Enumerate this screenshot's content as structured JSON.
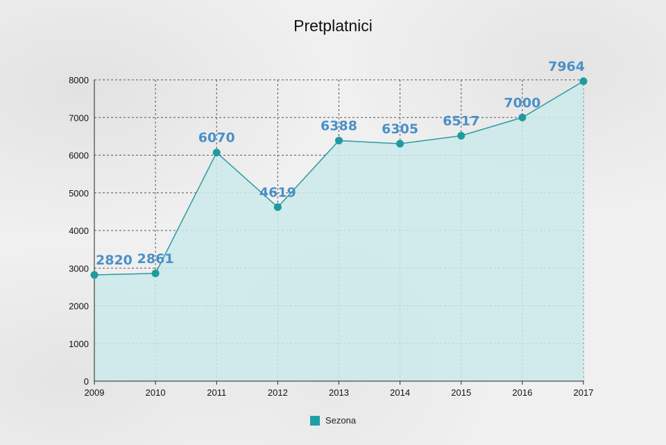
{
  "chart_data": {
    "type": "area",
    "title": "Pretplatnici",
    "xlabel": "",
    "ylabel": "",
    "categories": [
      "2009",
      "2010",
      "2011",
      "2012",
      "2013",
      "2014",
      "2015",
      "2016",
      "2017"
    ],
    "series": [
      {
        "name": "Sezona",
        "values": [
          2820,
          2861,
          6070,
          4619,
          6388,
          6305,
          6517,
          7000,
          7964
        ],
        "data_labels": [
          "2820",
          "2861",
          "6070",
          "4619",
          "6388",
          "6305",
          "6517",
          "7000",
          "7964"
        ]
      }
    ],
    "yticks": [
      "0",
      "1000",
      "2000",
      "3000",
      "4000",
      "5000",
      "6000",
      "7000",
      "8000"
    ],
    "ylim": [
      0,
      8000
    ],
    "grid": true,
    "legend_position": "bottom",
    "colors": {
      "line": "#2a9ba0",
      "fill": "#cbe9ea",
      "marker": "#1e9aa0",
      "data_label": "#4a90c8",
      "legend_swatch": "#1fa0a6"
    }
  }
}
